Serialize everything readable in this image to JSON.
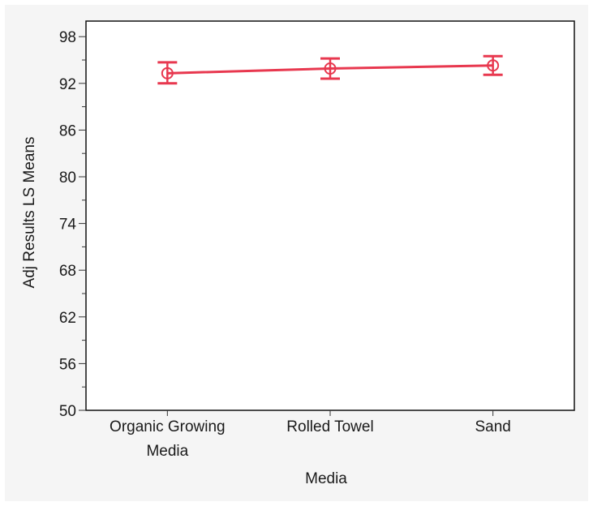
{
  "chart_data": {
    "type": "line",
    "title": "",
    "xlabel": "Media",
    "ylabel": "Adj Results LS Means",
    "categories": [
      [
        "Organic Growing",
        "Media"
      ],
      [
        "Rolled Towel"
      ],
      [
        "Sand"
      ]
    ],
    "series": [
      {
        "values": [
          93.3,
          93.9,
          94.3
        ],
        "error_low": [
          92.0,
          92.6,
          93.1
        ],
        "error_high": [
          94.7,
          95.2,
          95.5
        ]
      }
    ],
    "ylim": [
      50,
      100
    ],
    "yticks": [
      50,
      56,
      62,
      68,
      74,
      80,
      86,
      92,
      98
    ],
    "grid": false,
    "line_color": "#e8384f",
    "background_color": "#f5f5f5"
  }
}
